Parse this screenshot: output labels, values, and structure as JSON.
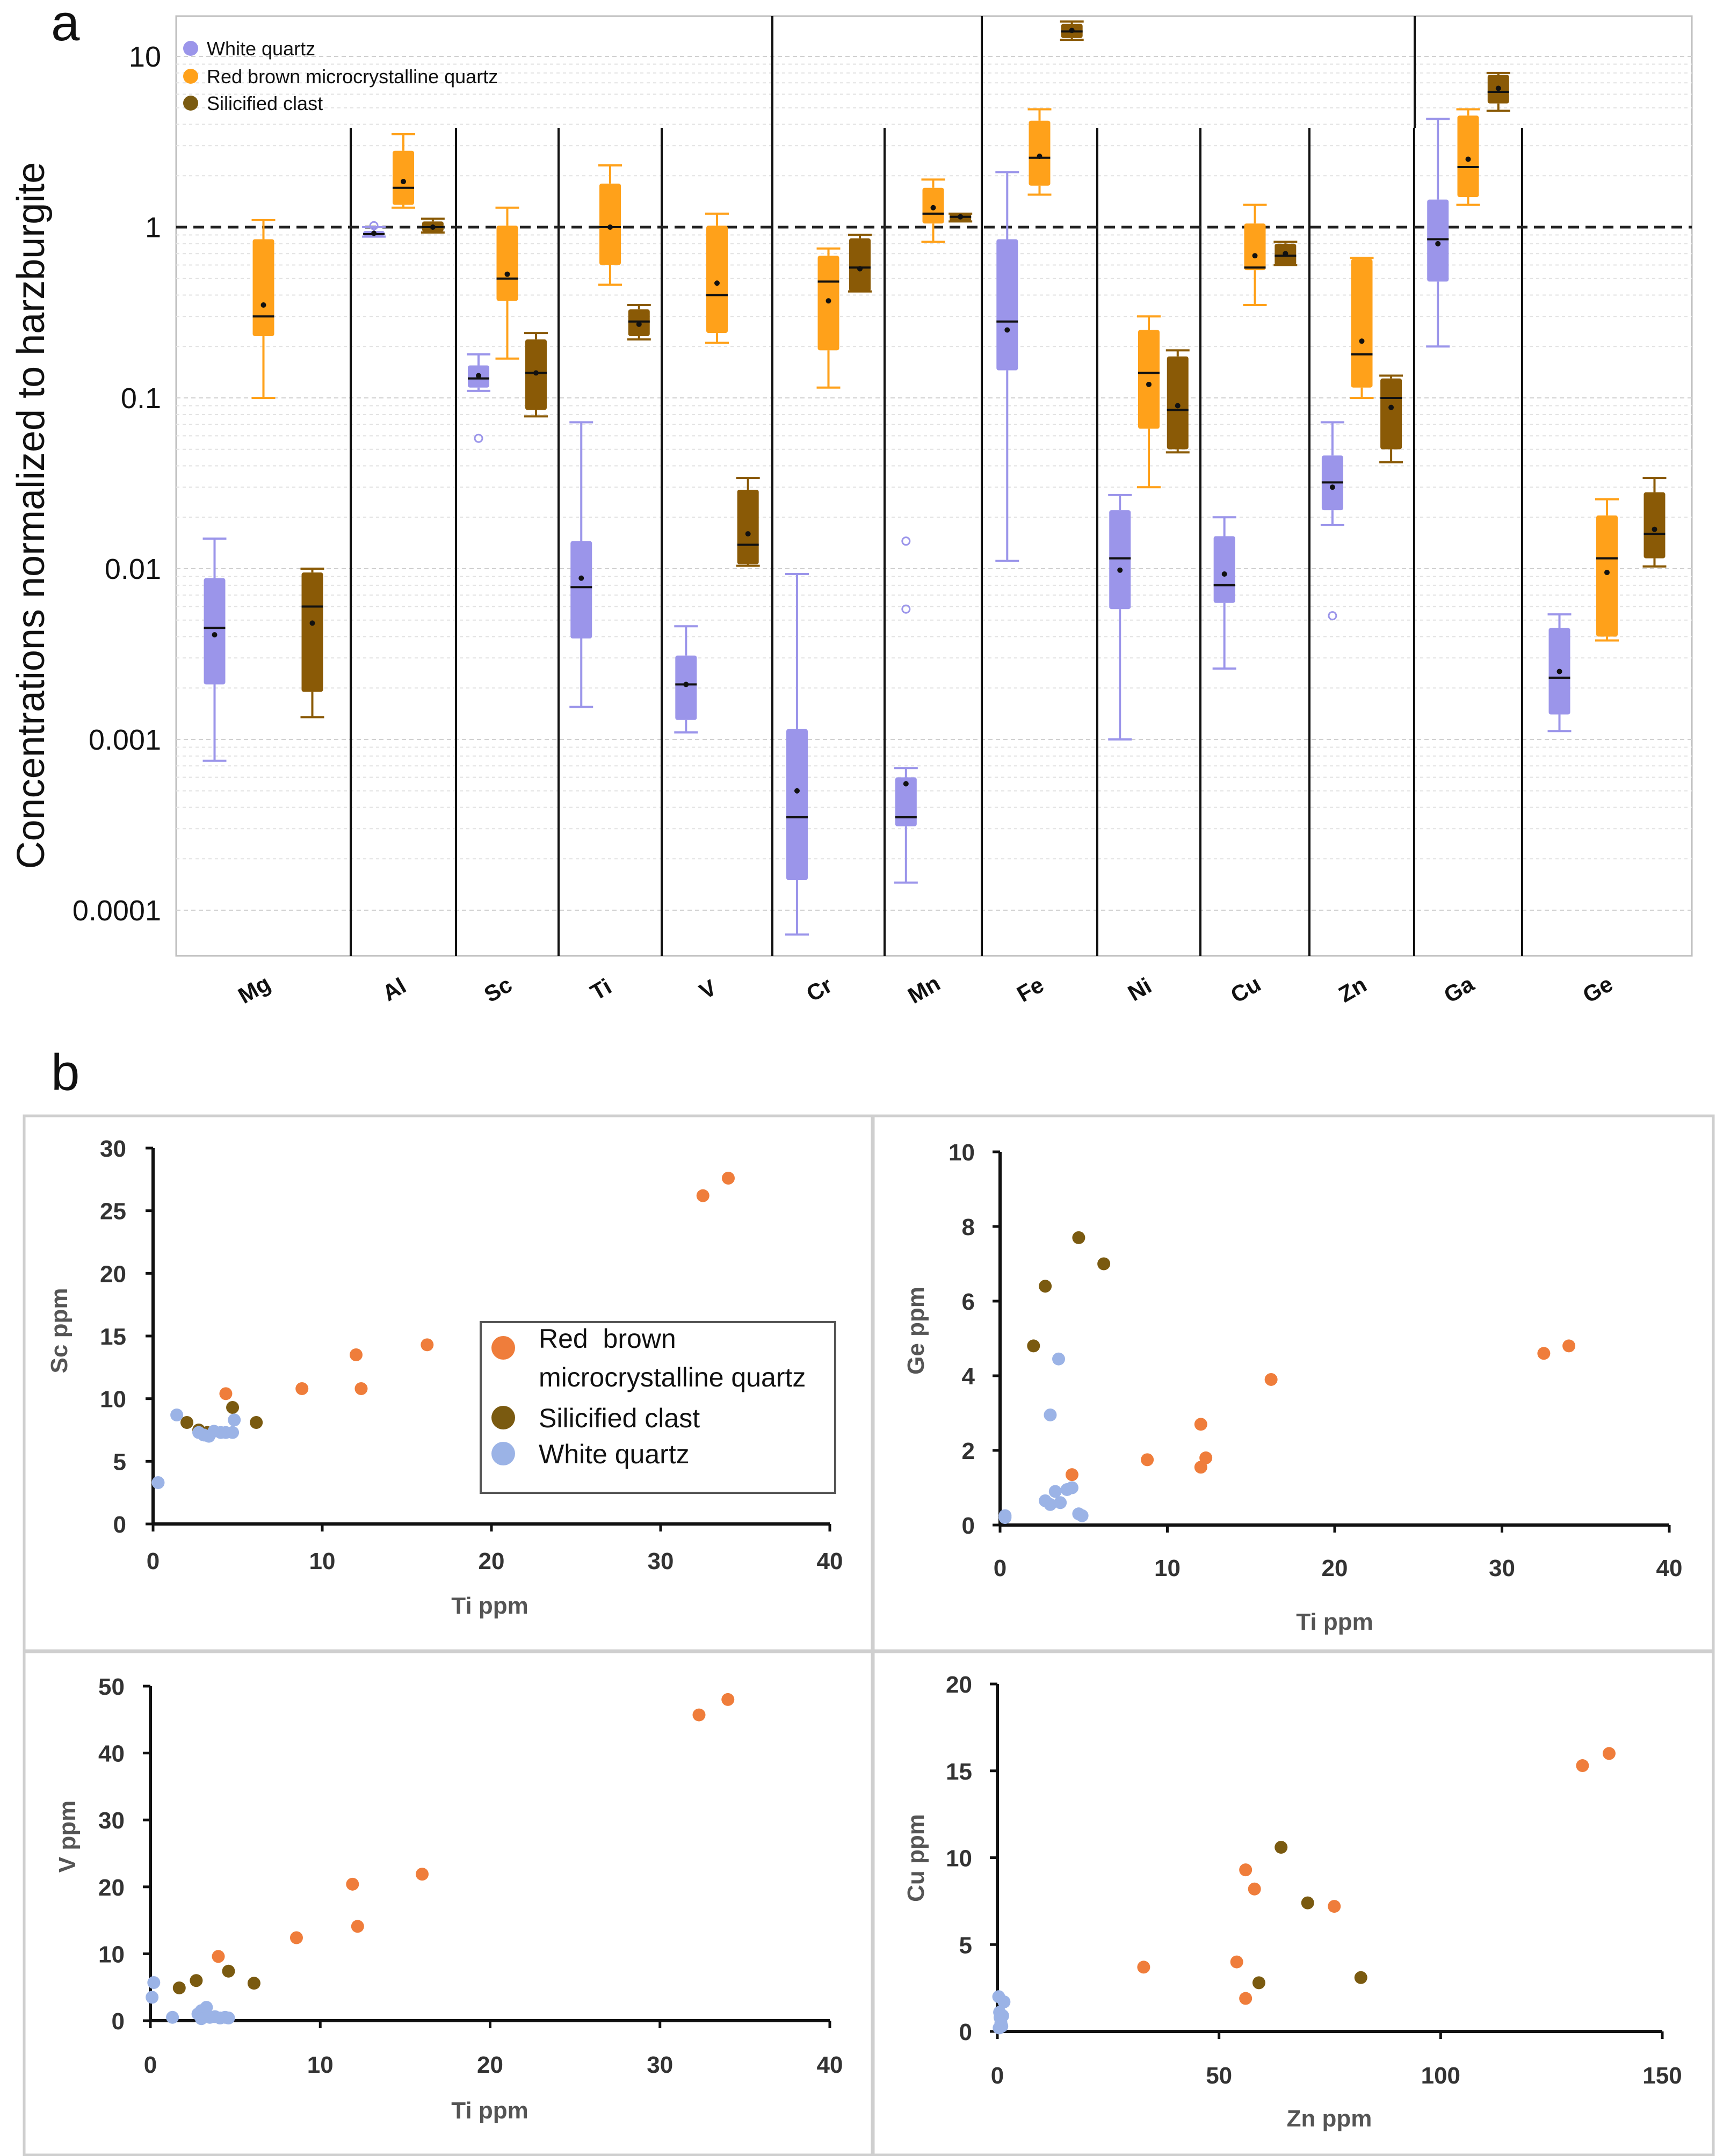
{
  "figure": {
    "panel_a_label": "a",
    "panel_b_label": "b"
  },
  "colors": {
    "white_quartz_box": "#9b95ea",
    "white_quartz_point": "#9bb3e6",
    "red_brown": "#ffa11a",
    "red_brown_point": "#ef7d3b",
    "silicified": "#8a5a06",
    "silicified_point": "#7a5a10"
  },
  "chart_data": [
    {
      "type": "box",
      "panel": "a",
      "scale": "log",
      "title": "",
      "xlabel": "",
      "ylabel": "Concentrations normalized to harzburgite",
      "ylim": [
        0.0001,
        16
      ],
      "yticks": [
        {
          "value": 10,
          "label": "10"
        },
        {
          "value": 1,
          "label": "1"
        },
        {
          "value": 0.1,
          "label": "0.1"
        },
        {
          "value": 0.01,
          "label": "0.01"
        },
        {
          "value": 0.001,
          "label": "0.001"
        },
        {
          "value": 0.0001,
          "label": "0.0001"
        }
      ],
      "reference_line": 1,
      "legend": [
        {
          "key": "wq",
          "label": "White quartz"
        },
        {
          "key": "rb",
          "label": "Red brown microcrystalline quartz"
        },
        {
          "key": "sc",
          "label": "Silicified clast"
        }
      ],
      "categories": [
        "Mg",
        "Al",
        "Sc",
        "Ti",
        "V",
        "Cr",
        "Mn",
        "Fe",
        "Ni",
        "Cu",
        "Zn",
        "Ga",
        "Ge"
      ],
      "boxes": [
        {
          "cat": 0,
          "series": "wq",
          "min": 0.00075,
          "q1": 0.0021,
          "median": 0.0045,
          "q3": 0.0088,
          "max": 0.015,
          "mean": 0.0041
        },
        {
          "cat": 0,
          "series": "rb",
          "min": 0.1,
          "q1": 0.23,
          "median": 0.3,
          "q3": 0.85,
          "max": 1.1,
          "mean": 0.35
        },
        {
          "cat": 0,
          "series": "sc",
          "min": 0.00135,
          "q1": 0.0019,
          "median": 0.006,
          "q3": 0.0095,
          "max": 0.01,
          "mean": 0.0048
        },
        {
          "cat": 1,
          "series": "wq",
          "min": 0.88,
          "q1": 0.89,
          "median": 0.91,
          "q3": 0.95,
          "max": 1.0,
          "mean": 0.92,
          "outliers": [
            1.02
          ]
        },
        {
          "cat": 1,
          "series": "rb",
          "min": 1.3,
          "q1": 1.35,
          "median": 1.7,
          "q3": 2.8,
          "max": 3.5,
          "mean": 1.85
        },
        {
          "cat": 1,
          "series": "sc",
          "min": 0.93,
          "q1": 0.94,
          "median": 1.0,
          "q3": 1.08,
          "max": 1.12,
          "mean": 1.0
        },
        {
          "cat": 2,
          "series": "wq",
          "min": 0.11,
          "q1": 0.115,
          "median": 0.13,
          "q3": 0.155,
          "max": 0.18,
          "mean": 0.135,
          "outliers": [
            0.058
          ]
        },
        {
          "cat": 2,
          "series": "rb",
          "min": 0.17,
          "q1": 0.37,
          "median": 0.5,
          "q3": 1.02,
          "max": 1.3,
          "mean": 0.53
        },
        {
          "cat": 2,
          "series": "sc",
          "min": 0.078,
          "q1": 0.085,
          "median": 0.14,
          "q3": 0.22,
          "max": 0.24,
          "mean": 0.14
        },
        {
          "cat": 3,
          "series": "wq",
          "min": 0.00155,
          "q1": 0.0039,
          "median": 0.0078,
          "q3": 0.0145,
          "max": 0.072,
          "mean": 0.0088
        },
        {
          "cat": 3,
          "series": "rb",
          "min": 0.46,
          "q1": 0.6,
          "median": 1.0,
          "q3": 1.8,
          "max": 2.3,
          "mean": 1.0
        },
        {
          "cat": 3,
          "series": "sc",
          "min": 0.22,
          "q1": 0.23,
          "median": 0.28,
          "q3": 0.33,
          "max": 0.35,
          "mean": 0.27
        },
        {
          "cat": 4,
          "series": "wq",
          "min": 0.0011,
          "q1": 0.0013,
          "median": 0.0021,
          "q3": 0.0031,
          "max": 0.0046,
          "mean": 0.0021
        },
        {
          "cat": 4,
          "series": "rb",
          "min": 0.21,
          "q1": 0.24,
          "median": 0.4,
          "q3": 1.02,
          "max": 1.2,
          "mean": 0.47
        },
        {
          "cat": 4,
          "series": "sc",
          "min": 0.0104,
          "q1": 0.0106,
          "median": 0.0138,
          "q3": 0.029,
          "max": 0.034,
          "mean": 0.016
        },
        {
          "cat": 5,
          "series": "wq",
          "min": 7.2e-05,
          "q1": 0.00015,
          "median": 0.00035,
          "q3": 0.00115,
          "max": 0.0093,
          "mean": 0.0005
        },
        {
          "cat": 5,
          "series": "rb",
          "min": 0.115,
          "q1": 0.19,
          "median": 0.48,
          "q3": 0.68,
          "max": 0.75,
          "mean": 0.37
        },
        {
          "cat": 5,
          "series": "sc",
          "min": 0.42,
          "q1": 0.42,
          "median": 0.58,
          "q3": 0.86,
          "max": 0.9,
          "mean": 0.57
        },
        {
          "cat": 6,
          "series": "wq",
          "min": 0.000145,
          "q1": 0.00031,
          "median": 0.00035,
          "q3": 0.0006,
          "max": 0.00068,
          "mean": 0.00055,
          "outliers": [
            0.0145,
            0.0058
          ]
        },
        {
          "cat": 6,
          "series": "rb",
          "min": 0.82,
          "q1": 1.05,
          "median": 1.2,
          "q3": 1.7,
          "max": 1.9,
          "mean": 1.3
        },
        {
          "cat": 6,
          "series": "sc",
          "min": 1.08,
          "q1": 1.08,
          "median": 1.15,
          "q3": 1.2,
          "max": 1.2,
          "mean": 1.15
        },
        {
          "cat": 7,
          "series": "wq",
          "min": 0.0111,
          "q1": 0.145,
          "median": 0.28,
          "q3": 0.85,
          "max": 2.1,
          "mean": 0.25
        },
        {
          "cat": 7,
          "series": "rb",
          "min": 1.55,
          "q1": 1.75,
          "median": 2.55,
          "q3": 4.2,
          "max": 4.9,
          "mean": 2.6
        },
        {
          "cat": 7,
          "series": "sc",
          "min": 12.5,
          "q1": 12.8,
          "median": 14.0,
          "q3": 15.5,
          "max": 16.0,
          "mean": 14.2
        },
        {
          "cat": 8,
          "series": "wq",
          "min": 0.001,
          "q1": 0.0058,
          "median": 0.0115,
          "q3": 0.022,
          "max": 0.027,
          "mean": 0.0098
        },
        {
          "cat": 8,
          "series": "rb",
          "min": 0.03,
          "q1": 0.066,
          "median": 0.14,
          "q3": 0.25,
          "max": 0.3,
          "mean": 0.12
        },
        {
          "cat": 8,
          "series": "sc",
          "min": 0.048,
          "q1": 0.05,
          "median": 0.085,
          "q3": 0.175,
          "max": 0.19,
          "mean": 0.09
        },
        {
          "cat": 9,
          "series": "wq",
          "min": 0.0026,
          "q1": 0.0063,
          "median": 0.008,
          "q3": 0.0155,
          "max": 0.02,
          "mean": 0.0093
        },
        {
          "cat": 9,
          "series": "rb",
          "min": 0.35,
          "q1": 0.56,
          "median": 0.58,
          "q3": 1.05,
          "max": 1.35,
          "mean": 0.68
        },
        {
          "cat": 9,
          "series": "sc",
          "min": 0.6,
          "q1": 0.6,
          "median": 0.68,
          "q3": 0.8,
          "max": 0.82,
          "mean": 0.7
        },
        {
          "cat": 10,
          "series": "wq",
          "min": 0.018,
          "q1": 0.022,
          "median": 0.032,
          "q3": 0.046,
          "max": 0.072,
          "mean": 0.03,
          "outliers": [
            0.0053
          ]
        },
        {
          "cat": 10,
          "series": "rb",
          "min": 0.1,
          "q1": 0.115,
          "median": 0.18,
          "q3": 0.65,
          "max": 0.66,
          "mean": 0.215
        },
        {
          "cat": 10,
          "series": "sc",
          "min": 0.042,
          "q1": 0.05,
          "median": 0.1,
          "q3": 0.13,
          "max": 0.135,
          "mean": 0.088
        },
        {
          "cat": 11,
          "series": "wq",
          "min": 0.2,
          "q1": 0.48,
          "median": 0.85,
          "q3": 1.45,
          "max": 4.3,
          "mean": 0.8
        },
        {
          "cat": 11,
          "series": "rb",
          "min": 1.35,
          "q1": 1.5,
          "median": 2.25,
          "q3": 4.5,
          "max": 4.9,
          "mean": 2.5
        },
        {
          "cat": 11,
          "series": "sc",
          "min": 4.8,
          "q1": 5.3,
          "median": 6.2,
          "q3": 7.8,
          "max": 8.0,
          "mean": 6.5
        },
        {
          "cat": 12,
          "series": "wq",
          "min": 0.00112,
          "q1": 0.0014,
          "median": 0.0023,
          "q3": 0.0045,
          "max": 0.0054,
          "mean": 0.0025
        },
        {
          "cat": 12,
          "series": "rb",
          "min": 0.0038,
          "q1": 0.004,
          "median": 0.0115,
          "q3": 0.0205,
          "max": 0.0255,
          "mean": 0.0095
        },
        {
          "cat": 12,
          "series": "sc",
          "min": 0.0103,
          "q1": 0.0115,
          "median": 0.016,
          "q3": 0.028,
          "max": 0.034,
          "mean": 0.017
        }
      ]
    },
    {
      "type": "scatter",
      "panel": "b1",
      "xlabel": "Ti ppm",
      "ylabel": "Sc ppm",
      "xlim": [
        0,
        40
      ],
      "ylim": [
        0,
        30
      ],
      "xticks": [
        0,
        10,
        20,
        30,
        40
      ],
      "yticks": [
        0,
        5,
        10,
        15,
        20,
        25,
        30
      ],
      "legend": [
        {
          "key": "rb",
          "label_line1": "Red  brown",
          "label_line2": "microcrystalline quartz"
        },
        {
          "key": "sc",
          "label": "Silicified clast"
        },
        {
          "key": "wq",
          "label": "White quartz"
        }
      ],
      "series": [
        {
          "name": "Red brown microcrystalline quartz",
          "key": "rb",
          "points": [
            [
              32.5,
              26.2
            ],
            [
              34.0,
              27.6
            ],
            [
              16.2,
              14.3
            ],
            [
              12.0,
              13.5
            ],
            [
              12.3,
              10.8
            ],
            [
              8.8,
              10.8
            ],
            [
              4.3,
              10.4
            ]
          ]
        },
        {
          "name": "Silicified clast",
          "key": "sc",
          "points": [
            [
              2.0,
              8.1
            ],
            [
              4.7,
              9.3
            ],
            [
              6.1,
              8.1
            ],
            [
              2.7,
              7.5
            ],
            [
              3.2,
              7.3
            ]
          ]
        },
        {
          "name": "White quartz",
          "key": "wq",
          "points": [
            [
              0.3,
              3.3
            ],
            [
              1.4,
              8.7
            ],
            [
              2.7,
              7.3
            ],
            [
              3.0,
              7.1
            ],
            [
              3.3,
              7.0
            ],
            [
              3.6,
              7.4
            ],
            [
              4.0,
              7.3
            ],
            [
              4.3,
              7.3
            ],
            [
              4.7,
              7.3
            ],
            [
              4.8,
              8.3
            ]
          ]
        }
      ]
    },
    {
      "type": "scatter",
      "panel": "b2",
      "xlabel": "Ti ppm",
      "ylabel": "Ge ppm",
      "xlim": [
        0,
        40
      ],
      "ylim": [
        0,
        10
      ],
      "xticks": [
        0,
        10,
        20,
        30,
        40
      ],
      "yticks": [
        0,
        2,
        4,
        6,
        8,
        10
      ],
      "series": [
        {
          "name": "Red brown microcrystalline quartz",
          "key": "rb",
          "points": [
            [
              32.5,
              4.6
            ],
            [
              34.0,
              4.8
            ],
            [
              16.2,
              3.9
            ],
            [
              12.0,
              2.7
            ],
            [
              12.3,
              1.8
            ],
            [
              12.0,
              1.55
            ],
            [
              8.8,
              1.75
            ],
            [
              4.3,
              1.35
            ]
          ]
        },
        {
          "name": "Silicified clast",
          "key": "sc",
          "points": [
            [
              2.0,
              4.8
            ],
            [
              2.7,
              6.4
            ],
            [
              4.7,
              7.7
            ],
            [
              6.2,
              7.0
            ]
          ]
        },
        {
          "name": "White quartz",
          "key": "wq",
          "points": [
            [
              0.3,
              0.2
            ],
            [
              0.3,
              0.25
            ],
            [
              2.7,
              0.65
            ],
            [
              3.0,
              0.55
            ],
            [
              3.3,
              0.9
            ],
            [
              3.5,
              4.45
            ],
            [
              3.0,
              2.95
            ],
            [
              4.0,
              0.95
            ],
            [
              4.3,
              1.0
            ],
            [
              4.7,
              0.3
            ],
            [
              4.9,
              0.25
            ],
            [
              3.6,
              0.6
            ]
          ]
        }
      ]
    },
    {
      "type": "scatter",
      "panel": "b3",
      "xlabel": "Ti ppm",
      "ylabel": "V ppm",
      "xlim": [
        0,
        40
      ],
      "ylim": [
        0,
        50
      ],
      "xticks": [
        0,
        10,
        20,
        30,
        40
      ],
      "yticks": [
        0,
        10,
        20,
        30,
        40,
        50
      ],
      "series": [
        {
          "name": "Red brown microcrystalline quartz",
          "key": "rb",
          "points": [
            [
              32.3,
              45.7
            ],
            [
              34.0,
              48.0
            ],
            [
              16.0,
              21.9
            ],
            [
              11.9,
              20.4
            ],
            [
              12.2,
              14.1
            ],
            [
              8.6,
              12.4
            ],
            [
              4.0,
              9.6
            ]
          ]
        },
        {
          "name": "Silicified clast",
          "key": "sc",
          "points": [
            [
              1.7,
              4.9
            ],
            [
              2.7,
              6.0
            ],
            [
              4.6,
              7.4
            ],
            [
              6.1,
              5.6
            ]
          ]
        },
        {
          "name": "White quartz",
          "key": "wq",
          "points": [
            [
              0.1,
              3.5
            ],
            [
              0.2,
              5.7
            ],
            [
              1.3,
              0.5
            ],
            [
              2.8,
              1.0
            ],
            [
              3.0,
              1.5
            ],
            [
              3.3,
              2.0
            ],
            [
              3.5,
              0.5
            ],
            [
              3.8,
              0.6
            ],
            [
              4.1,
              0.4
            ],
            [
              4.4,
              0.5
            ],
            [
              4.6,
              0.4
            ],
            [
              3.0,
              0.3
            ]
          ]
        }
      ]
    },
    {
      "type": "scatter",
      "panel": "b4",
      "xlabel": "Zn ppm",
      "ylabel": "Cu ppm",
      "xlim": [
        0,
        150
      ],
      "ylim": [
        0,
        20
      ],
      "xticks": [
        0,
        50,
        100,
        150
      ],
      "yticks": [
        0,
        5,
        10,
        15,
        20
      ],
      "series": [
        {
          "name": "Red brown microcrystalline quartz",
          "key": "rb",
          "points": [
            [
              33,
              3.7
            ],
            [
              54,
              4.0
            ],
            [
              56,
              1.9
            ],
            [
              56,
              9.3
            ],
            [
              58,
              8.2
            ],
            [
              76,
              7.2
            ],
            [
              132,
              15.3
            ],
            [
              138,
              16.0
            ]
          ]
        },
        {
          "name": "Silicified clast",
          "key": "sc",
          "points": [
            [
              59,
              2.8
            ],
            [
              64,
              10.6
            ],
            [
              70,
              7.4
            ],
            [
              82,
              3.1
            ]
          ]
        },
        {
          "name": "White quartz",
          "key": "wq",
          "points": [
            [
              0.3,
              2.0
            ],
            [
              0.5,
              1.1
            ],
            [
              0.6,
              0.8
            ],
            [
              0.8,
              0.5
            ],
            [
              1.0,
              0.3
            ],
            [
              1.2,
              0.9
            ],
            [
              1.5,
              1.7
            ],
            [
              0.4,
              0.2
            ]
          ]
        }
      ]
    }
  ]
}
